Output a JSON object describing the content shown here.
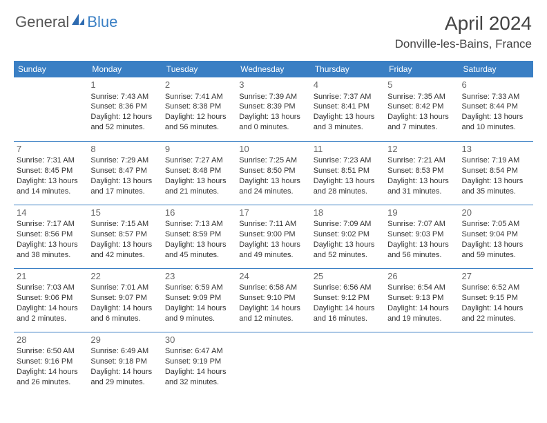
{
  "brand": {
    "text1": "General",
    "text2": "Blue",
    "color_gray": "#555555",
    "color_blue": "#3a7fc4"
  },
  "title": "April 2024",
  "location": "Donville-les-Bains, France",
  "header_bg": "#3a7fc4",
  "header_text_color": "#ffffff",
  "border_color": "#3a7fc4",
  "cell_text_color": "#333333",
  "background_color": "#ffffff",
  "font_family": "Arial",
  "title_fontsize": 28,
  "location_fontsize": 17,
  "header_fontsize": 12,
  "cell_fontsize": 11,
  "daynum_fontsize": 13,
  "weekdays": [
    "Sunday",
    "Monday",
    "Tuesday",
    "Wednesday",
    "Thursday",
    "Friday",
    "Saturday"
  ],
  "weeks": [
    [
      null,
      {
        "n": "1",
        "sunrise": "Sunrise: 7:43 AM",
        "sunset": "Sunset: 8:36 PM",
        "dl1": "Daylight: 12 hours",
        "dl2": "and 52 minutes."
      },
      {
        "n": "2",
        "sunrise": "Sunrise: 7:41 AM",
        "sunset": "Sunset: 8:38 PM",
        "dl1": "Daylight: 12 hours",
        "dl2": "and 56 minutes."
      },
      {
        "n": "3",
        "sunrise": "Sunrise: 7:39 AM",
        "sunset": "Sunset: 8:39 PM",
        "dl1": "Daylight: 13 hours",
        "dl2": "and 0 minutes."
      },
      {
        "n": "4",
        "sunrise": "Sunrise: 7:37 AM",
        "sunset": "Sunset: 8:41 PM",
        "dl1": "Daylight: 13 hours",
        "dl2": "and 3 minutes."
      },
      {
        "n": "5",
        "sunrise": "Sunrise: 7:35 AM",
        "sunset": "Sunset: 8:42 PM",
        "dl1": "Daylight: 13 hours",
        "dl2": "and 7 minutes."
      },
      {
        "n": "6",
        "sunrise": "Sunrise: 7:33 AM",
        "sunset": "Sunset: 8:44 PM",
        "dl1": "Daylight: 13 hours",
        "dl2": "and 10 minutes."
      }
    ],
    [
      {
        "n": "7",
        "sunrise": "Sunrise: 7:31 AM",
        "sunset": "Sunset: 8:45 PM",
        "dl1": "Daylight: 13 hours",
        "dl2": "and 14 minutes."
      },
      {
        "n": "8",
        "sunrise": "Sunrise: 7:29 AM",
        "sunset": "Sunset: 8:47 PM",
        "dl1": "Daylight: 13 hours",
        "dl2": "and 17 minutes."
      },
      {
        "n": "9",
        "sunrise": "Sunrise: 7:27 AM",
        "sunset": "Sunset: 8:48 PM",
        "dl1": "Daylight: 13 hours",
        "dl2": "and 21 minutes."
      },
      {
        "n": "10",
        "sunrise": "Sunrise: 7:25 AM",
        "sunset": "Sunset: 8:50 PM",
        "dl1": "Daylight: 13 hours",
        "dl2": "and 24 minutes."
      },
      {
        "n": "11",
        "sunrise": "Sunrise: 7:23 AM",
        "sunset": "Sunset: 8:51 PM",
        "dl1": "Daylight: 13 hours",
        "dl2": "and 28 minutes."
      },
      {
        "n": "12",
        "sunrise": "Sunrise: 7:21 AM",
        "sunset": "Sunset: 8:53 PM",
        "dl1": "Daylight: 13 hours",
        "dl2": "and 31 minutes."
      },
      {
        "n": "13",
        "sunrise": "Sunrise: 7:19 AM",
        "sunset": "Sunset: 8:54 PM",
        "dl1": "Daylight: 13 hours",
        "dl2": "and 35 minutes."
      }
    ],
    [
      {
        "n": "14",
        "sunrise": "Sunrise: 7:17 AM",
        "sunset": "Sunset: 8:56 PM",
        "dl1": "Daylight: 13 hours",
        "dl2": "and 38 minutes."
      },
      {
        "n": "15",
        "sunrise": "Sunrise: 7:15 AM",
        "sunset": "Sunset: 8:57 PM",
        "dl1": "Daylight: 13 hours",
        "dl2": "and 42 minutes."
      },
      {
        "n": "16",
        "sunrise": "Sunrise: 7:13 AM",
        "sunset": "Sunset: 8:59 PM",
        "dl1": "Daylight: 13 hours",
        "dl2": "and 45 minutes."
      },
      {
        "n": "17",
        "sunrise": "Sunrise: 7:11 AM",
        "sunset": "Sunset: 9:00 PM",
        "dl1": "Daylight: 13 hours",
        "dl2": "and 49 minutes."
      },
      {
        "n": "18",
        "sunrise": "Sunrise: 7:09 AM",
        "sunset": "Sunset: 9:02 PM",
        "dl1": "Daylight: 13 hours",
        "dl2": "and 52 minutes."
      },
      {
        "n": "19",
        "sunrise": "Sunrise: 7:07 AM",
        "sunset": "Sunset: 9:03 PM",
        "dl1": "Daylight: 13 hours",
        "dl2": "and 56 minutes."
      },
      {
        "n": "20",
        "sunrise": "Sunrise: 7:05 AM",
        "sunset": "Sunset: 9:04 PM",
        "dl1": "Daylight: 13 hours",
        "dl2": "and 59 minutes."
      }
    ],
    [
      {
        "n": "21",
        "sunrise": "Sunrise: 7:03 AM",
        "sunset": "Sunset: 9:06 PM",
        "dl1": "Daylight: 14 hours",
        "dl2": "and 2 minutes."
      },
      {
        "n": "22",
        "sunrise": "Sunrise: 7:01 AM",
        "sunset": "Sunset: 9:07 PM",
        "dl1": "Daylight: 14 hours",
        "dl2": "and 6 minutes."
      },
      {
        "n": "23",
        "sunrise": "Sunrise: 6:59 AM",
        "sunset": "Sunset: 9:09 PM",
        "dl1": "Daylight: 14 hours",
        "dl2": "and 9 minutes."
      },
      {
        "n": "24",
        "sunrise": "Sunrise: 6:58 AM",
        "sunset": "Sunset: 9:10 PM",
        "dl1": "Daylight: 14 hours",
        "dl2": "and 12 minutes."
      },
      {
        "n": "25",
        "sunrise": "Sunrise: 6:56 AM",
        "sunset": "Sunset: 9:12 PM",
        "dl1": "Daylight: 14 hours",
        "dl2": "and 16 minutes."
      },
      {
        "n": "26",
        "sunrise": "Sunrise: 6:54 AM",
        "sunset": "Sunset: 9:13 PM",
        "dl1": "Daylight: 14 hours",
        "dl2": "and 19 minutes."
      },
      {
        "n": "27",
        "sunrise": "Sunrise: 6:52 AM",
        "sunset": "Sunset: 9:15 PM",
        "dl1": "Daylight: 14 hours",
        "dl2": "and 22 minutes."
      }
    ],
    [
      {
        "n": "28",
        "sunrise": "Sunrise: 6:50 AM",
        "sunset": "Sunset: 9:16 PM",
        "dl1": "Daylight: 14 hours",
        "dl2": "and 26 minutes."
      },
      {
        "n": "29",
        "sunrise": "Sunrise: 6:49 AM",
        "sunset": "Sunset: 9:18 PM",
        "dl1": "Daylight: 14 hours",
        "dl2": "and 29 minutes."
      },
      {
        "n": "30",
        "sunrise": "Sunrise: 6:47 AM",
        "sunset": "Sunset: 9:19 PM",
        "dl1": "Daylight: 14 hours",
        "dl2": "and 32 minutes."
      },
      null,
      null,
      null,
      null
    ]
  ]
}
